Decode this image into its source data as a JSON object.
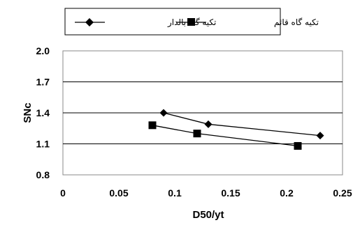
{
  "chart_data": {
    "type": "line",
    "title": "",
    "xlabel": "D50/yt",
    "ylabel": "SNc",
    "xlim": [
      0,
      0.25
    ],
    "ylim": [
      0.8,
      2.0
    ],
    "x_ticks": [
      "0",
      "0.05",
      "0.1",
      "0.15",
      "0.2",
      "0.25"
    ],
    "y_ticks": [
      "0.8",
      "1.1",
      "1.4",
      "1.7",
      "2.0"
    ],
    "grid": "horizontal",
    "legend_position": "top",
    "series": [
      {
        "name": "تکیه گاه بالدار",
        "marker": "diamond",
        "color": "#000000",
        "x": [
          0.09,
          0.13,
          0.23
        ],
        "y": [
          1.4,
          1.29,
          1.18
        ]
      },
      {
        "name": "تکیه گاه قائم",
        "marker": "square",
        "color": "#000000",
        "x": [
          0.08,
          0.12,
          0.21
        ],
        "y": [
          1.28,
          1.2,
          1.08
        ]
      }
    ]
  }
}
